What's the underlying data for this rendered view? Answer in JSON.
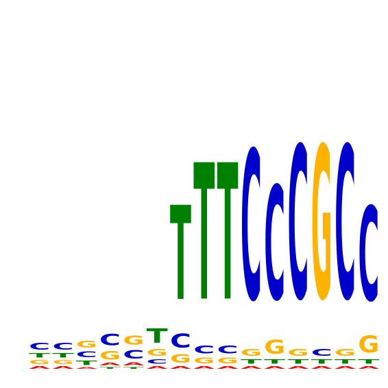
{
  "logo": {
    "type": "sequence-logo",
    "colors": {
      "A": "#ff0000",
      "C": "#0000cc",
      "G": "#ffb300",
      "T": "#008000"
    },
    "columns": [
      [
        [
          "A",
          0.08
        ],
        [
          "G",
          0.12
        ],
        [
          "T",
          0.14
        ],
        [
          "C",
          0.2
        ]
      ],
      [
        [
          "A",
          0.08
        ],
        [
          "G",
          0.12
        ],
        [
          "T",
          0.14
        ],
        [
          "C",
          0.2
        ]
      ],
      [
        [
          "A",
          0.06
        ],
        [
          "T",
          0.14
        ],
        [
          "C",
          0.18
        ],
        [
          "G",
          0.2
        ]
      ],
      [
        [
          "T",
          0.06
        ],
        [
          "A",
          0.08
        ],
        [
          "G",
          0.26
        ],
        [
          "C",
          0.34
        ]
      ],
      [
        [
          "T",
          0.06
        ],
        [
          "A",
          0.1
        ],
        [
          "C",
          0.26
        ],
        [
          "G",
          0.28
        ]
      ],
      [
        [
          "A",
          0.08
        ],
        [
          "C",
          0.14
        ],
        [
          "G",
          0.2
        ],
        [
          "T",
          0.44
        ]
      ],
      [
        [
          "A",
          0.08
        ],
        [
          "G",
          0.26
        ],
        [
          "C",
          0.42
        ],
        [
          "T",
          2.9
        ]
      ],
      [
        [
          "A",
          0.08
        ],
        [
          "G",
          0.18
        ],
        [
          "C",
          0.24
        ],
        [
          "T",
          4.2
        ]
      ],
      [
        [
          "A",
          0.08
        ],
        [
          "G",
          0.18
        ],
        [
          "C",
          0.24
        ],
        [
          "T",
          4.2
        ]
      ],
      [
        [
          "A",
          0.08
        ],
        [
          "T",
          0.14
        ],
        [
          "G",
          0.2
        ],
        [
          "C",
          4.6
        ]
      ],
      [
        [
          "A",
          0.08
        ],
        [
          "T",
          0.14
        ],
        [
          "G",
          0.42
        ],
        [
          "C",
          3.5
        ]
      ],
      [
        [
          "A",
          0.08
        ],
        [
          "T",
          0.14
        ],
        [
          "G",
          0.2
        ],
        [
          "C",
          4.7
        ]
      ],
      [
        [
          "A",
          0.08
        ],
        [
          "T",
          0.14
        ],
        [
          "C",
          0.2
        ],
        [
          "G",
          4.7
        ]
      ],
      [
        [
          "A",
          0.08
        ],
        [
          "T",
          0.14
        ],
        [
          "G",
          0.2
        ],
        [
          "C",
          4.7
        ]
      ],
      [
        [
          "A",
          0.08
        ],
        [
          "T",
          0.14
        ],
        [
          "G",
          0.52
        ],
        [
          "C",
          2.9
        ]
      ]
    ]
  }
}
